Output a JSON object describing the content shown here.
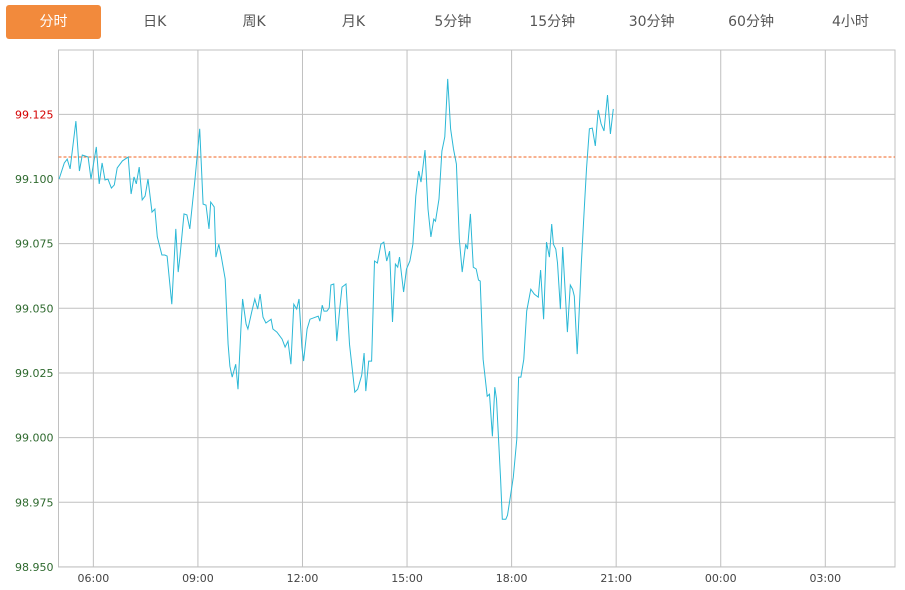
{
  "tabs": [
    {
      "label": "分时",
      "active": true
    },
    {
      "label": "日K"
    },
    {
      "label": "周K"
    },
    {
      "label": "月K"
    },
    {
      "label": "5分钟"
    },
    {
      "label": "15分钟"
    },
    {
      "label": "30分钟"
    },
    {
      "label": "60分钟"
    },
    {
      "label": "4小时"
    }
  ],
  "chart_data": {
    "type": "line",
    "title": "",
    "xlabel": "",
    "ylabel": "",
    "x_unit": "minutes since 05:00",
    "xlim": [
      0,
      1440
    ],
    "ylim": [
      98.95,
      99.15
    ],
    "grid": true,
    "y_ticks": [
      {
        "value": 99.125,
        "label": "99.125",
        "highlight": true
      },
      {
        "value": 99.1,
        "label": "99.100"
      },
      {
        "value": 99.075,
        "label": "99.075"
      },
      {
        "value": 99.05,
        "label": "99.050"
      },
      {
        "value": 99.025,
        "label": "99.025"
      },
      {
        "value": 99.0,
        "label": "99.000"
      },
      {
        "value": 98.975,
        "label": "98.975"
      },
      {
        "value": 98.95,
        "label": "98.950"
      }
    ],
    "x_ticks": [
      {
        "value": 60,
        "label": "06:00"
      },
      {
        "value": 240,
        "label": "09:00"
      },
      {
        "value": 420,
        "label": "12:00"
      },
      {
        "value": 600,
        "label": "15:00"
      },
      {
        "value": 780,
        "label": "18:00"
      },
      {
        "value": 960,
        "label": "21:00"
      },
      {
        "value": 1140,
        "label": "00:00"
      },
      {
        "value": 1320,
        "label": "03:00"
      }
    ],
    "reference_line": {
      "name": "previous-close",
      "value": 99.1085,
      "color": "#f26522"
    },
    "series": [
      {
        "name": "price",
        "color": "#2bb8d6",
        "points": [
          [
            1,
            99.1
          ],
          [
            10,
            99.1062
          ],
          [
            15,
            99.1077
          ],
          [
            20,
            99.1039
          ],
          [
            30,
            99.1224
          ],
          [
            36,
            99.1031
          ],
          [
            41,
            99.1093
          ],
          [
            51,
            99.1085
          ],
          [
            56,
            99.1
          ],
          [
            65,
            99.1124
          ],
          [
            70,
            99.0981
          ],
          [
            75,
            99.1062
          ],
          [
            80,
            99.0996
          ],
          [
            85,
            99.1
          ],
          [
            91,
            99.0965
          ],
          [
            96,
            99.0977
          ],
          [
            101,
            99.1043
          ],
          [
            110,
            99.107
          ],
          [
            120,
            99.1085
          ],
          [
            125,
            99.0942
          ],
          [
            130,
            99.1008
          ],
          [
            134,
            99.0981
          ],
          [
            139,
            99.1046
          ],
          [
            144,
            99.0919
          ],
          [
            149,
            99.0934
          ],
          [
            154,
            99.1
          ],
          [
            161,
            99.0872
          ],
          [
            166,
            99.0884
          ],
          [
            170,
            99.0776
          ],
          [
            178,
            99.0706
          ],
          [
            183,
            99.0706
          ],
          [
            187,
            99.0702
          ],
          [
            195,
            99.0516
          ],
          [
            202,
            99.0807
          ],
          [
            206,
            99.064
          ],
          [
            209,
            99.0698
          ],
          [
            216,
            99.0865
          ],
          [
            221,
            99.0861
          ],
          [
            226,
            99.0807
          ],
          [
            235,
            99.1
          ],
          [
            243,
            99.1194
          ],
          [
            249,
            99.0903
          ],
          [
            254,
            99.0899
          ],
          [
            259,
            99.0807
          ],
          [
            262,
            99.0911
          ],
          [
            268,
            99.0892
          ],
          [
            271,
            99.0698
          ],
          [
            276,
            99.0748
          ],
          [
            280,
            99.0702
          ],
          [
            287,
            99.0613
          ],
          [
            292,
            99.0361
          ],
          [
            295,
            99.0276
          ],
          [
            299,
            99.0234
          ],
          [
            305,
            99.0284
          ],
          [
            309,
            99.0187
          ],
          [
            314,
            99.042
          ],
          [
            317,
            99.0536
          ],
          [
            323,
            99.0439
          ],
          [
            326,
            99.042
          ],
          [
            333,
            99.0489
          ],
          [
            338,
            99.0536
          ],
          [
            343,
            99.0497
          ],
          [
            347,
            99.0555
          ],
          [
            352,
            99.0466
          ],
          [
            357,
            99.0443
          ],
          [
            366,
            99.0458
          ],
          [
            369,
            99.042
          ],
          [
            376,
            99.0408
          ],
          [
            385,
            99.0381
          ],
          [
            390,
            99.035
          ],
          [
            395,
            99.0373
          ],
          [
            400,
            99.0284
          ],
          [
            405,
            99.0516
          ],
          [
            410,
            99.0497
          ],
          [
            414,
            99.0536
          ],
          [
            419,
            99.035
          ],
          [
            422,
            99.0296
          ],
          [
            428,
            99.042
          ],
          [
            433,
            99.0458
          ],
          [
            447,
            99.047
          ],
          [
            450,
            99.045
          ],
          [
            454,
            99.0512
          ],
          [
            457,
            99.0489
          ],
          [
            462,
            99.0489
          ],
          [
            466,
            99.0501
          ],
          [
            469,
            99.059
          ],
          [
            474,
            99.0594
          ],
          [
            479,
            99.0373
          ],
          [
            484,
            99.0497
          ],
          [
            488,
            99.0582
          ],
          [
            495,
            99.0594
          ],
          [
            501,
            99.0361
          ],
          [
            510,
            99.0176
          ],
          [
            515,
            99.0187
          ],
          [
            522,
            99.0241
          ],
          [
            526,
            99.0327
          ],
          [
            529,
            99.018
          ],
          [
            534,
            99.0296
          ],
          [
            539,
            99.0296
          ],
          [
            544,
            99.0683
          ],
          [
            549,
            99.0675
          ],
          [
            555,
            99.0748
          ],
          [
            560,
            99.0756
          ],
          [
            565,
            99.0683
          ],
          [
            570,
            99.0721
          ],
          [
            575,
            99.0447
          ],
          [
            580,
            99.0671
          ],
          [
            584,
            99.0659
          ],
          [
            587,
            99.0698
          ],
          [
            594,
            99.0563
          ],
          [
            599,
            99.0652
          ],
          [
            605,
            99.0683
          ],
          [
            610,
            99.0748
          ],
          [
            615,
            99.0934
          ],
          [
            620,
            99.1031
          ],
          [
            624,
            99.0988
          ],
          [
            627,
            99.1039
          ],
          [
            631,
            99.1112
          ],
          [
            636,
            99.0884
          ],
          [
            641,
            99.0776
          ],
          [
            646,
            99.0845
          ],
          [
            649,
            99.0837
          ],
          [
            655,
            99.0923
          ],
          [
            660,
            99.1108
          ],
          [
            665,
            99.1163
          ],
          [
            670,
            99.1387
          ],
          [
            675,
            99.1194
          ],
          [
            680,
            99.1116
          ],
          [
            685,
            99.1058
          ],
          [
            690,
            99.0768
          ],
          [
            695,
            99.064
          ],
          [
            701,
            99.0748
          ],
          [
            704,
            99.0729
          ],
          [
            709,
            99.0865
          ],
          [
            714,
            99.0659
          ],
          [
            719,
            99.0652
          ],
          [
            723,
            99.0609
          ],
          [
            726,
            99.0605
          ],
          [
            731,
            99.0303
          ],
          [
            738,
            99.016
          ],
          [
            742,
            99.0168
          ],
          [
            747,
            99.0005
          ],
          [
            751,
            99.0195
          ],
          [
            754,
            99.0149
          ],
          [
            761,
            98.9839
          ],
          [
            764,
            98.9684
          ],
          [
            770,
            98.9684
          ],
          [
            773,
            98.97
          ],
          [
            778,
            98.9773
          ],
          [
            783,
            98.9847
          ],
          [
            789,
            98.9994
          ],
          [
            792,
            99.0234
          ],
          [
            796,
            99.0234
          ],
          [
            801,
            99.0303
          ],
          [
            806,
            99.0489
          ],
          [
            813,
            99.0574
          ],
          [
            819,
            99.0555
          ],
          [
            826,
            99.0543
          ],
          [
            830,
            99.0648
          ],
          [
            835,
            99.0458
          ],
          [
            840,
            99.0756
          ],
          [
            845,
            99.0698
          ],
          [
            849,
            99.0826
          ],
          [
            852,
            99.0748
          ],
          [
            856,
            99.0729
          ],
          [
            859,
            99.0675
          ],
          [
            864,
            99.0497
          ],
          [
            868,
            99.0737
          ],
          [
            873,
            99.0536
          ],
          [
            876,
            99.0408
          ],
          [
            881,
            99.059
          ],
          [
            885,
            99.0574
          ],
          [
            888,
            99.0547
          ],
          [
            893,
            99.0323
          ],
          [
            895,
            99.042
          ],
          [
            900,
            99.0671
          ],
          [
            905,
            99.088
          ],
          [
            909,
            99.1039
          ],
          [
            914,
            99.1194
          ],
          [
            919,
            99.1197
          ],
          [
            924,
            99.1128
          ],
          [
            929,
            99.1267
          ],
          [
            934,
            99.1213
          ],
          [
            939,
            99.1186
          ],
          [
            945,
            99.1325
          ],
          [
            950,
            99.1174
          ],
          [
            955,
            99.1271
          ]
        ]
      }
    ]
  }
}
